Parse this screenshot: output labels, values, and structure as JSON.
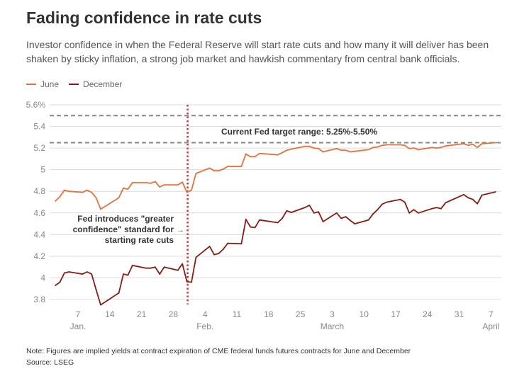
{
  "title": "Fading confidence in rate cuts",
  "subtitle": "Investor confidence in when the Federal Reserve will start rate cuts and how many it will deliver has been shaken by sticky inflation, a strong job market and hawkish commentary from central bank officials.",
  "note": "Note: Figures are implied yields at contract expiration of CME federal funds futures contracts for June and December",
  "source": "Source: LSEG",
  "chart_data": {
    "type": "line",
    "title": "",
    "xlabel": "",
    "ylabel": "",
    "ylim": [
      3.8,
      5.6
    ],
    "y_ticks": [
      {
        "value": 5.6,
        "label": "5.6%"
      },
      {
        "value": 5.4,
        "label": "5.4"
      },
      {
        "value": 5.2,
        "label": "5.2"
      },
      {
        "value": 5.0,
        "label": "5"
      },
      {
        "value": 4.8,
        "label": "4.8"
      },
      {
        "value": 4.6,
        "label": "4.6"
      },
      {
        "value": 4.4,
        "label": "4.4"
      },
      {
        "value": 4.2,
        "label": "4.2"
      },
      {
        "value": 4.0,
        "label": "4"
      },
      {
        "value": 3.8,
        "label": "3.8"
      }
    ],
    "x_ticks": [
      {
        "date": "2024-01-07",
        "label": "7",
        "month": "Jan."
      },
      {
        "date": "2024-01-14",
        "label": "14"
      },
      {
        "date": "2024-01-21",
        "label": "21"
      },
      {
        "date": "2024-01-28",
        "label": "28"
      },
      {
        "date": "2024-02-04",
        "label": "4",
        "month": "Feb."
      },
      {
        "date": "2024-02-11",
        "label": "11"
      },
      {
        "date": "2024-02-18",
        "label": "18"
      },
      {
        "date": "2024-02-25",
        "label": "25"
      },
      {
        "date": "2024-03-03",
        "label": "3",
        "month": "March"
      },
      {
        "date": "2024-03-10",
        "label": "10"
      },
      {
        "date": "2024-03-17",
        "label": "17"
      },
      {
        "date": "2024-03-24",
        "label": "24"
      },
      {
        "date": "2024-03-31",
        "label": "31"
      },
      {
        "date": "2024-04-07",
        "label": "7",
        "month": "April"
      }
    ],
    "grid": true,
    "legend_position": "top-left",
    "dates": [
      "2024-01-02",
      "2024-01-03",
      "2024-01-04",
      "2024-01-05",
      "2024-01-08",
      "2024-01-09",
      "2024-01-10",
      "2024-01-11",
      "2024-01-12",
      "2024-01-16",
      "2024-01-17",
      "2024-01-18",
      "2024-01-19",
      "2024-01-22",
      "2024-01-23",
      "2024-01-24",
      "2024-01-25",
      "2024-01-26",
      "2024-01-29",
      "2024-01-30",
      "2024-01-31",
      "2024-02-01",
      "2024-02-02",
      "2024-02-05",
      "2024-02-06",
      "2024-02-07",
      "2024-02-08",
      "2024-02-09",
      "2024-02-12",
      "2024-02-13",
      "2024-02-14",
      "2024-02-15",
      "2024-02-16",
      "2024-02-20",
      "2024-02-21",
      "2024-02-22",
      "2024-02-23",
      "2024-02-26",
      "2024-02-27",
      "2024-02-28",
      "2024-02-29",
      "2024-03-01",
      "2024-03-04",
      "2024-03-05",
      "2024-03-06",
      "2024-03-07",
      "2024-03-08",
      "2024-03-11",
      "2024-03-12",
      "2024-03-13",
      "2024-03-14",
      "2024-03-15",
      "2024-03-18",
      "2024-03-19",
      "2024-03-20",
      "2024-03-21",
      "2024-03-22",
      "2024-03-25",
      "2024-03-26",
      "2024-03-27",
      "2024-03-28",
      "2024-04-01",
      "2024-04-02",
      "2024-04-03",
      "2024-04-04",
      "2024-04-05",
      "2024-04-08"
    ],
    "series": [
      {
        "name": "June",
        "color": "#e8703a",
        "values": [
          4.71,
          4.75,
          4.81,
          4.8,
          4.79,
          4.81,
          4.79,
          4.74,
          4.635,
          4.74,
          4.83,
          4.82,
          4.88,
          4.88,
          4.875,
          4.89,
          4.84,
          4.86,
          4.86,
          4.885,
          4.79,
          4.81,
          4.965,
          5.015,
          4.99,
          4.99,
          5.005,
          5.03,
          5.03,
          5.145,
          5.12,
          5.12,
          5.15,
          5.137,
          5.157,
          5.18,
          5.19,
          5.215,
          5.215,
          5.2,
          5.195,
          5.165,
          5.195,
          5.18,
          5.18,
          5.165,
          5.17,
          5.185,
          5.205,
          5.21,
          5.225,
          5.23,
          5.23,
          5.225,
          5.195,
          5.2,
          5.185,
          5.205,
          5.2,
          5.205,
          5.22,
          5.24,
          5.225,
          5.235,
          5.205,
          5.24,
          5.25
        ]
      },
      {
        "name": "December",
        "color": "#8b1a14",
        "values": [
          3.93,
          3.96,
          4.045,
          4.055,
          4.035,
          4.055,
          4.035,
          3.89,
          3.75,
          3.86,
          4.035,
          4.025,
          4.115,
          4.09,
          4.09,
          4.1,
          4.035,
          4.1,
          4.07,
          4.13,
          3.965,
          3.96,
          4.19,
          4.29,
          4.215,
          4.225,
          4.265,
          4.32,
          4.315,
          4.54,
          4.47,
          4.465,
          4.535,
          4.51,
          4.55,
          4.62,
          4.605,
          4.65,
          4.67,
          4.6,
          4.61,
          4.52,
          4.6,
          4.55,
          4.565,
          4.53,
          4.5,
          4.535,
          4.59,
          4.63,
          4.68,
          4.7,
          4.725,
          4.7,
          4.6,
          4.63,
          4.6,
          4.64,
          4.65,
          4.64,
          4.695,
          4.77,
          4.74,
          4.725,
          4.685,
          4.765,
          4.795
        ]
      }
    ],
    "reference_lines": [
      {
        "value": 5.5,
        "style": "dashed",
        "color": "#888888"
      },
      {
        "value": 5.25,
        "style": "dashed",
        "color": "#888888"
      }
    ],
    "range_label": "Current Fed target range: 5.25%-5.50%",
    "event_line": {
      "date": "2024-01-31",
      "color": "#e03030",
      "style": "dotted"
    },
    "event_label": [
      "Fed introduces \"greater",
      "confidence\" standard for",
      "starting rate cuts"
    ],
    "event_arrow": "→"
  }
}
